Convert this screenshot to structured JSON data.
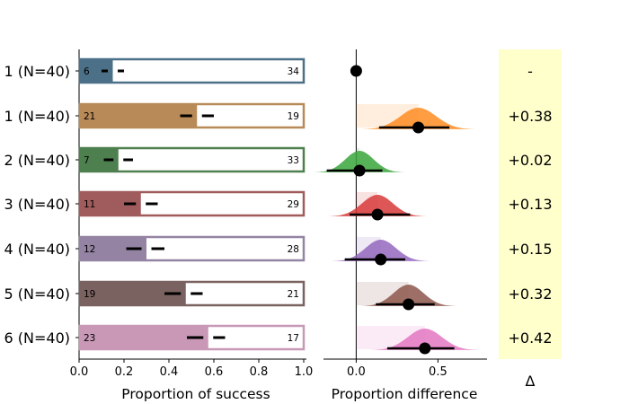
{
  "chart_data": [
    {
      "type": "bar",
      "xlabel": "Proportion of success",
      "ylabel": "",
      "xlim": [
        0,
        1
      ],
      "xticks": [
        "0.0",
        "0.2",
        "0.4",
        "0.6",
        "0.8",
        "1.0"
      ],
      "categories": [
        "1 (N=40)",
        "1 (N=40)",
        "2 (N=40)",
        "3 (N=40)",
        "4 (N=40)",
        "5 (N=40)",
        "6 (N=40)"
      ],
      "series": [
        {
          "values": [
            0.15,
            0.525,
            0.175,
            0.275,
            0.3,
            0.475,
            0.575
          ]
        }
      ],
      "successes": [
        "6",
        "21",
        "7",
        "11",
        "12",
        "19",
        "23"
      ],
      "failures": [
        "34",
        "19",
        "33",
        "29",
        "28",
        "21",
        "17"
      ],
      "ci": [
        [
          0.1,
          0.2
        ],
        [
          0.45,
          0.6
        ],
        [
          0.11,
          0.24
        ],
        [
          0.2,
          0.35
        ],
        [
          0.21,
          0.38
        ],
        [
          0.38,
          0.55
        ],
        [
          0.48,
          0.65
        ]
      ],
      "colors": [
        "#4c7087",
        "#b78a58",
        "#4e7f4e",
        "#a05c5c",
        "#9483a3",
        "#7a6260",
        "#c898b6"
      ],
      "grid": false
    },
    {
      "type": "scatter",
      "xlabel": "Proportion difference",
      "xlim": [
        -0.2,
        0.8
      ],
      "xticks": [
        "0.0",
        "0.5"
      ],
      "categories": [
        "1 (N=40)",
        "1 (N=40)",
        "2 (N=40)",
        "3 (N=40)",
        "4 (N=40)",
        "5 (N=40)",
        "6 (N=40)"
      ],
      "series": [
        {
          "values": [
            0.0,
            0.38,
            0.02,
            0.13,
            0.15,
            0.32,
            0.42
          ]
        }
      ],
      "ci": [
        null,
        [
          0.14,
          0.57
        ],
        [
          -0.18,
          0.16
        ],
        [
          -0.04,
          0.33
        ],
        [
          -0.07,
          0.3
        ],
        [
          0.12,
          0.48
        ],
        [
          0.19,
          0.6
        ]
      ],
      "density_colors": [
        "#000000",
        "#ff8c22",
        "#3aa63a",
        "#d83a3a",
        "#9467bd",
        "#8c564b",
        "#e377c2"
      ],
      "grid": false
    }
  ],
  "deltas": {
    "header": "Δ",
    "values": [
      "-",
      "+0.38",
      "+0.02",
      "+0.13",
      "+0.15",
      "+0.32",
      "+0.42"
    ],
    "panel_color": "#ffffcc"
  }
}
